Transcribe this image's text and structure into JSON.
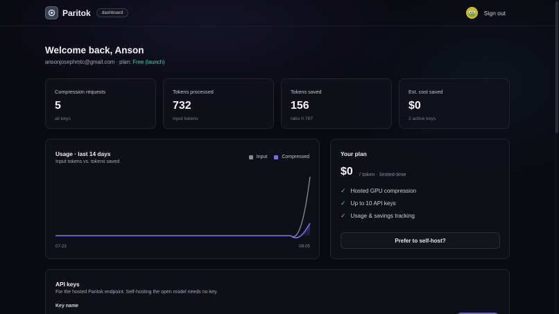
{
  "brand": {
    "name": "Paritok",
    "badge": "dashboard"
  },
  "header": {
    "sign_out": "Sign out"
  },
  "welcome": {
    "title": "Welcome back, Anson",
    "email": "ansonjosephmtc@gmail.com",
    "plan_prefix": " · plan: ",
    "plan": "Free (launch)"
  },
  "stats": [
    {
      "label": "Compression requests",
      "value": "5",
      "sub": "all keys"
    },
    {
      "label": "Tokens processed",
      "value": "732",
      "sub": "input tokens"
    },
    {
      "label": "Tokens saved",
      "value": "156",
      "sub": "ratio 0.787"
    },
    {
      "label": "Est. cost saved",
      "value": "$0",
      "sub": "2 active keys"
    }
  ],
  "usage": {
    "title": "Usage · last 14 days",
    "subtitle": "Input tokens vs. tokens saved",
    "legend": [
      {
        "name": "Input",
        "color": "#8a8a96"
      },
      {
        "name": "Compressed",
        "color": "#7b68ee"
      }
    ]
  },
  "chart_data": {
    "type": "area",
    "x_start_label": "07-23",
    "x_end_label": "08-05",
    "series": [
      {
        "name": "Input",
        "color": "#8a8a96",
        "values": [
          0,
          0,
          0,
          0,
          0,
          0,
          0,
          0,
          0,
          0,
          0,
          0,
          0,
          732
        ]
      },
      {
        "name": "Compressed",
        "color": "#7b68ee",
        "values": [
          0,
          0,
          0,
          0,
          0,
          0,
          0,
          0,
          0,
          0,
          0,
          0,
          0,
          156
        ]
      }
    ]
  },
  "plan": {
    "title": "Your plan",
    "price": "$0",
    "unit": "/ token · limited-time",
    "features": [
      "Hosted GPU compression",
      "Up to 10 API keys",
      "Usage & savings tracking"
    ],
    "check": "✓",
    "self_host_button": "Prefer to self-host?"
  },
  "api_keys": {
    "title": "API keys",
    "subtitle": "For the hosted Paritok endpoint. Self-hosting the open model needs no key.",
    "key_name_label": "Key name"
  }
}
